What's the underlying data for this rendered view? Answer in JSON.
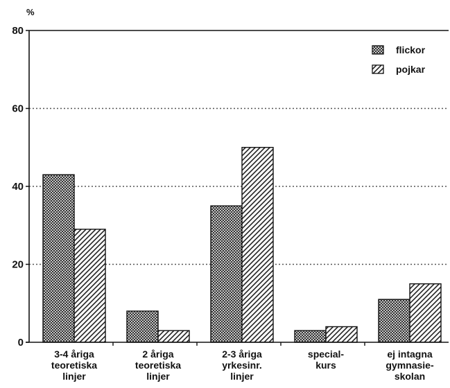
{
  "chart_data": {
    "type": "bar",
    "ylabel": "%",
    "ylim": [
      0,
      80
    ],
    "yticks": [
      "0",
      "20",
      "40",
      "60",
      "80"
    ],
    "grid": "dotted horizontal lines",
    "legend_position": "top-right",
    "categories": [
      [
        "3-4 åriga",
        "teoretiska",
        "linjer"
      ],
      [
        "2 åriga",
        "teoretiska",
        "linjer"
      ],
      [
        "2-3 åriga",
        "yrkesinr.",
        "linjer"
      ],
      [
        "special-",
        "kurs"
      ],
      [
        "ej intagna",
        "gymnasie-",
        "skolan"
      ]
    ],
    "series": [
      {
        "name": "flickor",
        "values": [
          43,
          8,
          35,
          3,
          11
        ],
        "pattern": "crosshatch"
      },
      {
        "name": "pojkar",
        "values": [
          29,
          3,
          50,
          4,
          15
        ],
        "pattern": "diagonal"
      }
    ]
  }
}
